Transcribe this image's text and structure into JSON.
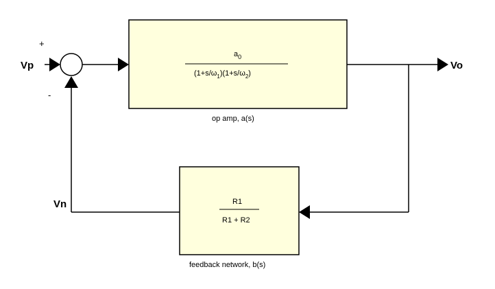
{
  "diagram": {
    "nodes": {
      "vp": "Vp",
      "vo": "Vo",
      "vn": "Vn"
    },
    "signs": {
      "plus": "+",
      "minus": "-"
    },
    "opamp": {
      "numerator": "a",
      "numerator_sub": "0",
      "den_open": "(1+s/ω",
      "sub1": "1",
      "den_mid": ")(1+s/ω",
      "sub2": "2",
      "den_close": ")",
      "caption": "op amp, a(s)"
    },
    "feedback": {
      "numerator": "R1",
      "denominator": "R1 + R2",
      "caption": "feedback network, b(s)"
    },
    "colors": {
      "block_fill": "#ffffdd",
      "line": "#000000"
    }
  }
}
